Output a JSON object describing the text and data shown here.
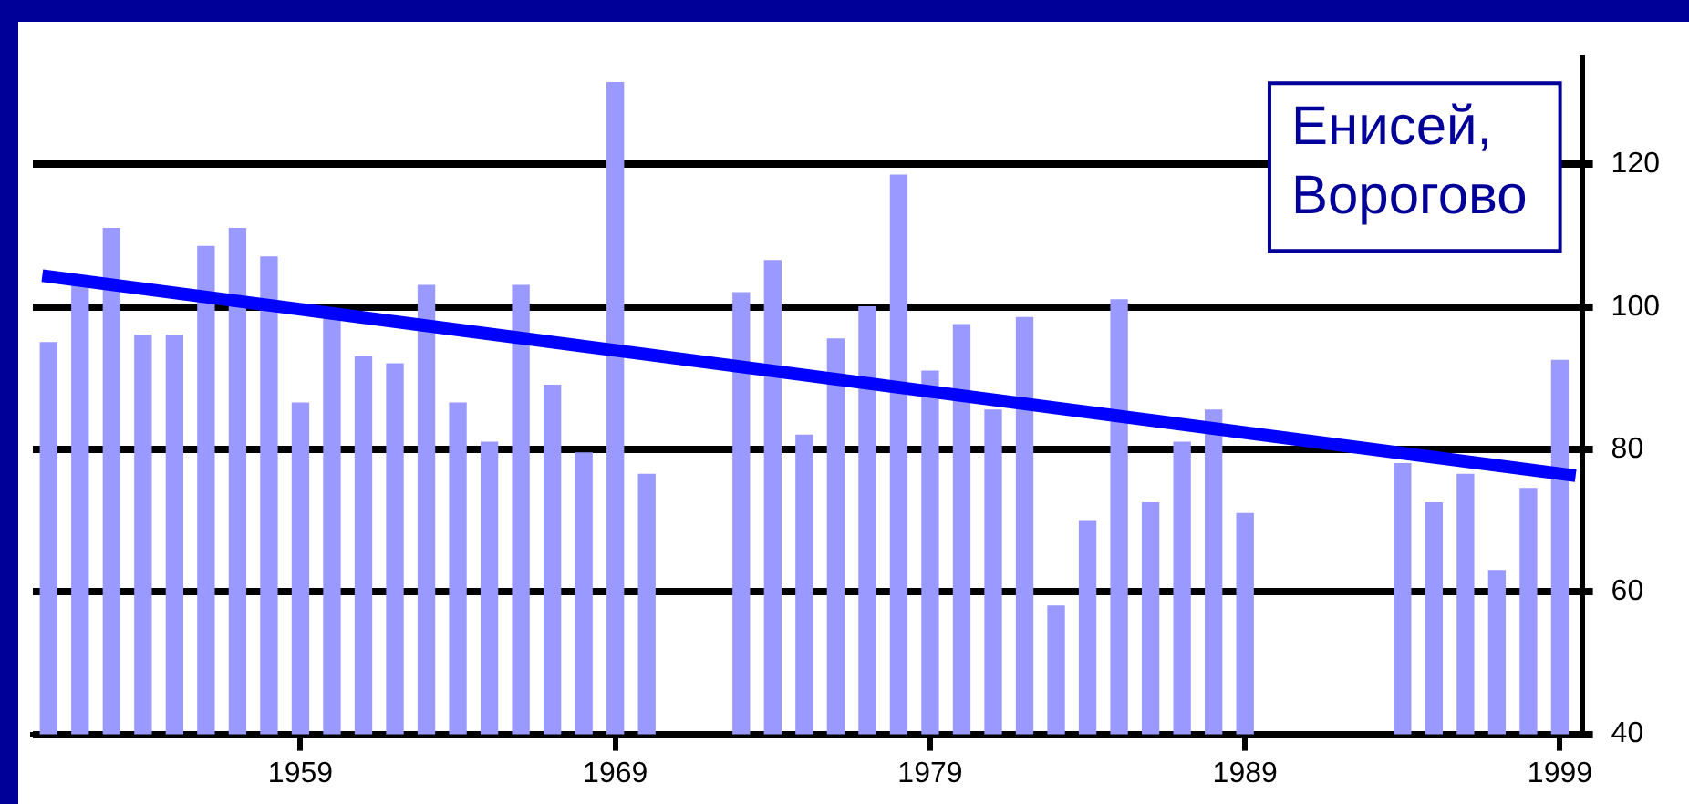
{
  "chart_data": {
    "type": "bar",
    "annotations": [
      "Енисей, Ворогово"
    ],
    "x": [
      1951,
      1952,
      1953,
      1954,
      1955,
      1956,
      1957,
      1958,
      1959,
      1960,
      1961,
      1962,
      1963,
      1964,
      1965,
      1966,
      1967,
      1968,
      1969,
      1970,
      1973,
      1974,
      1975,
      1976,
      1977,
      1978,
      1979,
      1980,
      1981,
      1982,
      1983,
      1984,
      1985,
      1986,
      1987,
      1988,
      1989,
      1994,
      1995,
      1996,
      1997,
      1998,
      1999
    ],
    "xlim": [
      1950.5,
      1999.7
    ],
    "xticks": [
      1959,
      1969,
      1979,
      1989,
      1999
    ],
    "ylim": [
      40,
      135
    ],
    "yticks": [
      40,
      60,
      80,
      100,
      120
    ],
    "grid": "y",
    "legend": false,
    "series": [
      {
        "color": "#9999ff",
        "values": [
          95,
          103,
          111,
          96,
          96,
          108.5,
          111,
          107,
          86.5,
          98.5,
          93,
          92,
          103,
          86.5,
          81,
          103,
          89,
          79.5,
          131.5,
          76.5,
          102,
          106.5,
          82,
          95.5,
          100,
          118.5,
          91,
          97.5,
          85.5,
          98.5,
          58,
          70,
          101,
          72.5,
          81,
          85.5,
          71,
          78,
          72.5,
          76.5,
          63,
          74.5,
          92.5
        ]
      },
      {
        "type": "line",
        "color": "#0000ff",
        "x": [
          1950.8,
          1999.5
        ],
        "values": [
          104.4,
          76.3
        ]
      }
    ]
  }
}
